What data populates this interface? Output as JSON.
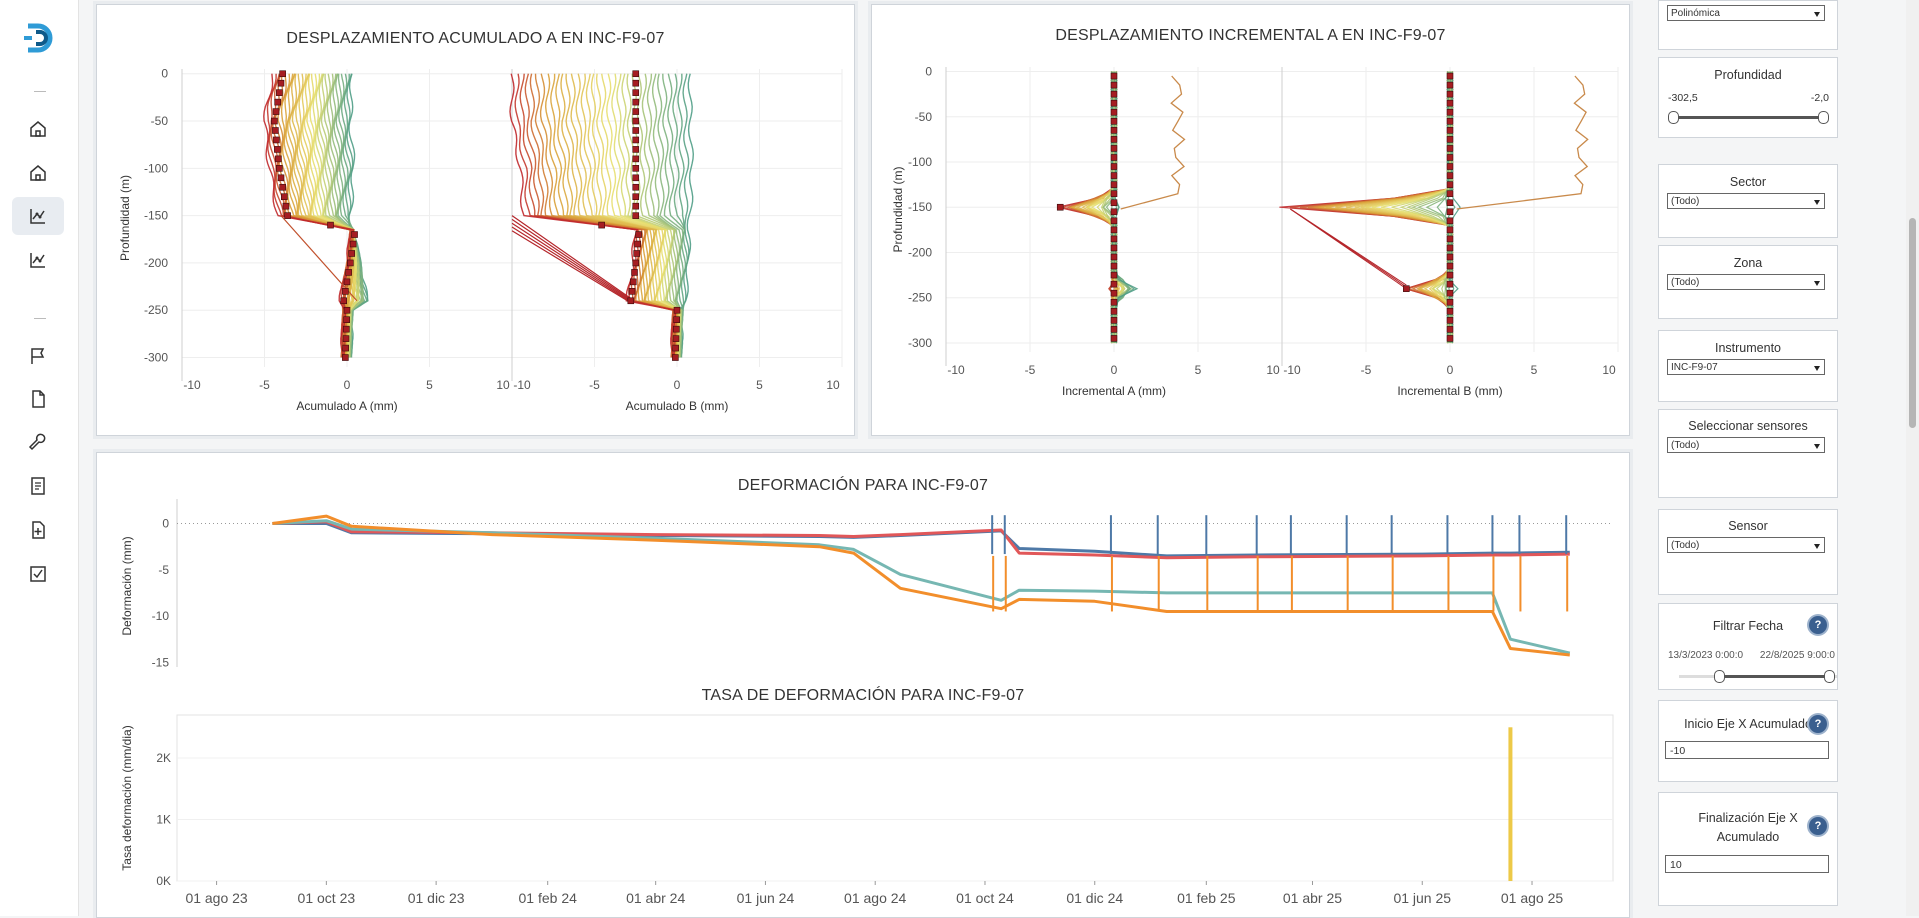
{
  "nav": {
    "items": [
      {
        "name": "home-icon-1"
      },
      {
        "name": "home-icon-2"
      },
      {
        "name": "chart-icon-active"
      },
      {
        "name": "chart-icon"
      },
      {
        "name": "flag-icon"
      },
      {
        "name": "document-icon"
      },
      {
        "name": "wrench-icon"
      },
      {
        "name": "list-document-icon"
      },
      {
        "name": "add-document-icon"
      },
      {
        "name": "checkbox-icon"
      }
    ]
  },
  "colors": {
    "accent": "#2f9bd6",
    "brand_dark": "#0e5a8a"
  },
  "top_left": {
    "title": "DESPLAZAMIENTO ACUMULADO A EN INC-F9-07",
    "ylabel": "Profundidad (m)",
    "yticks": [
      "0",
      "-50",
      "-100",
      "-150",
      "-200",
      "-250",
      "-300"
    ],
    "xticks": [
      "-10",
      "-5",
      "0",
      "5",
      "10"
    ],
    "xlabel_a": "Acumulado A (mm)",
    "xlabel_b": "Acumulado B (mm)"
  },
  "top_right": {
    "title": "DESPLAZAMIENTO INCREMENTAL A EN INC-F9-07",
    "ylabel": "Profundidad (m)",
    "yticks": [
      "0",
      "-50",
      "-100",
      "-150",
      "-200",
      "-250",
      "-300"
    ],
    "xticks": [
      "-10",
      "-5",
      "0",
      "5",
      "10"
    ],
    "xlabel_a": "Incremental A (mm)",
    "xlabel_b": "Incremental B (mm)"
  },
  "bottom": {
    "title1": "DEFORMACIÓN PARA INC-F9-07",
    "ylabel1": "Deformación (mm)",
    "yticks1": [
      "0",
      "-5",
      "-10",
      "-15"
    ],
    "title2": "TASA DE DEFORMACIÓN PARA INC-F9-07",
    "ylabel2": "Tasa deformación (mm/dia)",
    "yticks2": [
      "2K",
      "1K",
      "0K"
    ],
    "xticks": [
      "01 ago 23",
      "01 oct 23",
      "01 dic 23",
      "01 feb 24",
      "01 abr 24",
      "01 jun 24",
      "01 ago 24",
      "01 oct 24",
      "01 dic 24",
      "01 feb 25",
      "01 abr 25",
      "01 jun 25",
      "01 ago 25"
    ]
  },
  "filters": {
    "tipo_value": "Polinómica",
    "profundidad": {
      "label": "Profundidad",
      "min": "-302,5",
      "max": "-2,0",
      "low": 0.0,
      "high": 1.0
    },
    "sector": {
      "label": "Sector",
      "value": "(Todo)"
    },
    "zona": {
      "label": "Zona",
      "value": "(Todo)"
    },
    "instrumento": {
      "label": "Instrumento",
      "value": "INC-F9-07"
    },
    "sensores": {
      "label": "Seleccionar sensores",
      "value": "(Todo)"
    },
    "sensor": {
      "label": "Sensor",
      "value": "(Todo)"
    },
    "fecha": {
      "label": "Filtrar Fecha",
      "start": "13/3/2023 0:00:0",
      "end": "22/8/2025 9:00:0",
      "help": "?"
    },
    "inicio_x": {
      "label": "Inicio Eje X Acumulado",
      "value": "-10",
      "help": "?"
    },
    "fin_x": {
      "label": "Finalización Eje X Acumulado",
      "value": "10",
      "help": "?"
    }
  },
  "chart_data": [
    {
      "type": "line",
      "title": "DESPLAZAMIENTO ACUMULADO A EN INC-F9-07",
      "xlabel": "Acumulado A (mm) / Acumulado B (mm)",
      "ylabel": "Profundidad (m)",
      "xlim": [
        -10,
        10
      ],
      "ylim": [
        -310,
        5
      ],
      "panels": [
        {
          "name": "Acumulado A (mm)",
          "profile_depth": [
            0,
            -50,
            -100,
            -150,
            -165,
            -200,
            -240,
            -250,
            -300
          ],
          "profile_min": [
            -4.5,
            -5.0,
            -4.7,
            -4.2,
            0.3,
            0.0,
            -0.4,
            -0.2,
            -0.3
          ],
          "profile_max": [
            0.3,
            0.2,
            0.4,
            0.2,
            0.3,
            0.8,
            1.2,
            0.3,
            0.2
          ]
        },
        {
          "name": "Acumulado B (mm)",
          "profile_depth": [
            0,
            -50,
            -100,
            -150,
            -165,
            -200,
            -240,
            -250,
            -300
          ],
          "profile_min": [
            -10,
            -10,
            -9.5,
            -9.3,
            -2.5,
            -2.7,
            -3.0,
            -0.2,
            -0.3
          ],
          "profile_max": [
            0.8,
            0.8,
            0.9,
            0.8,
            0.7,
            0.7,
            0.5,
            0.3,
            0.2
          ]
        }
      ]
    },
    {
      "type": "line",
      "title": "DESPLAZAMIENTO INCREMENTAL A EN INC-F9-07",
      "xlabel": "Incremental A (mm) / Incremental B (mm)",
      "ylabel": "Profundidad (m)",
      "xlim": [
        -10,
        10
      ],
      "ylim": [
        -310,
        5
      ],
      "panels": [
        {
          "name": "Incremental A (mm)",
          "spike_depths": [
            -150,
            -240
          ],
          "spike_min": [
            -3.2,
            -0.2
          ],
          "spike_max": [
            0.3,
            1.2
          ],
          "offset_profile_x": 3.8
        },
        {
          "name": "Incremental B (mm)",
          "spike_depths": [
            -150,
            -240
          ],
          "spike_min": [
            -10,
            -2.6
          ],
          "spike_max": [
            0.6,
            0.3
          ],
          "offset_profile_x": 7.8
        }
      ]
    },
    {
      "type": "line",
      "title": "DEFORMACIÓN PARA INC-F9-07",
      "ylabel": "Deformación (mm)",
      "ylim": [
        -15.5,
        2
      ],
      "x": [
        "2023-09-01",
        "2023-10-01",
        "2023-10-15",
        "2024-01-01",
        "2024-04-01",
        "2024-07-01",
        "2024-07-20",
        "2024-08-15",
        "2024-10-10",
        "2024-10-20",
        "2024-12-01",
        "2025-01-10",
        "2025-03-01",
        "2025-06-01",
        "2025-07-10",
        "2025-07-20",
        "2025-08-22"
      ],
      "series": [
        {
          "color": "#4e79a7",
          "values": [
            0,
            0,
            -1,
            -1.1,
            -1.3,
            -1.4,
            -1.5,
            -1.3,
            -0.8,
            -2.7,
            -3.0,
            -3.5,
            -3.4,
            -3.3,
            -3.2,
            -3.2,
            -3.1
          ]
        },
        {
          "color": "#e15759",
          "values": [
            0,
            0.2,
            -0.9,
            -1.0,
            -1.2,
            -1.3,
            -1.4,
            -1.2,
            -0.7,
            -3.2,
            -3.4,
            -3.7,
            -3.6,
            -3.5,
            -3.4,
            -3.4,
            -3.3
          ]
        },
        {
          "color": "#76b7b2",
          "values": [
            0,
            0.3,
            -0.6,
            -1.0,
            -1.6,
            -2.3,
            -2.8,
            -5.5,
            -8.3,
            -7.2,
            -7.3,
            -7.5,
            -7.5,
            -7.5,
            -7.5,
            -12.5,
            -14.0
          ]
        },
        {
          "color": "#f28e2b",
          "values": [
            0,
            0.8,
            -0.3,
            -1.2,
            -1.8,
            -2.5,
            -3.2,
            -7.0,
            -9.2,
            -8.2,
            -8.4,
            -9.5,
            -9.5,
            -9.5,
            -9.5,
            -13.5,
            -14.2
          ]
        }
      ]
    },
    {
      "type": "bar",
      "title": "TASA DE DEFORMACIÓN PARA INC-F9-07",
      "ylabel": "Tasa deformación (mm/dia)",
      "ylim": [
        0,
        2700
      ],
      "x": [
        "2025-07-20"
      ],
      "values": [
        2500
      ],
      "color": "#edc948"
    }
  ]
}
